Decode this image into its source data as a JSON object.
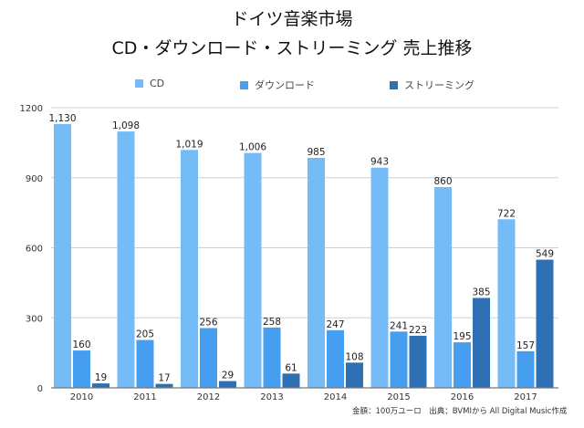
{
  "chart_data": {
    "type": "bar",
    "title": "ドイツ音楽市場",
    "subtitle": "CD・ダウンロード・ストリーミング 売上推移",
    "xlabel": "",
    "ylabel": "",
    "categories": [
      "2010",
      "2011",
      "2012",
      "2013",
      "2014",
      "2015",
      "2016",
      "2017"
    ],
    "series": [
      {
        "name": "CD",
        "color": "#74bbf7",
        "values": [
          1130,
          1098,
          1019,
          1006,
          985,
          943,
          860,
          722
        ],
        "labels": [
          "1,130",
          "1,098",
          "1,019",
          "1,006",
          "985",
          "943",
          "860",
          "722"
        ]
      },
      {
        "name": "ダウンロード",
        "color": "#459ef0",
        "values": [
          160,
          205,
          256,
          258,
          247,
          241,
          195,
          157
        ],
        "labels": [
          "160",
          "205",
          "256",
          "258",
          "247",
          "241",
          "195",
          "157"
        ]
      },
      {
        "name": "ストリーミング",
        "color": "#2f70b5",
        "values": [
          19,
          17,
          29,
          61,
          108,
          223,
          385,
          549
        ],
        "labels": [
          "19",
          "17",
          "29",
          "61",
          "108",
          "223",
          "385",
          "549"
        ]
      }
    ],
    "ylim": [
      0,
      1200
    ],
    "yticks": [
      0,
      300,
      600,
      900,
      1200
    ],
    "ytick_labels": [
      "0",
      "300",
      "600",
      "900",
      "1200"
    ],
    "grid": true,
    "legend": "top-center",
    "note": "金額：100万ユーロ　出典：BVMIから All Digital Music作成"
  }
}
